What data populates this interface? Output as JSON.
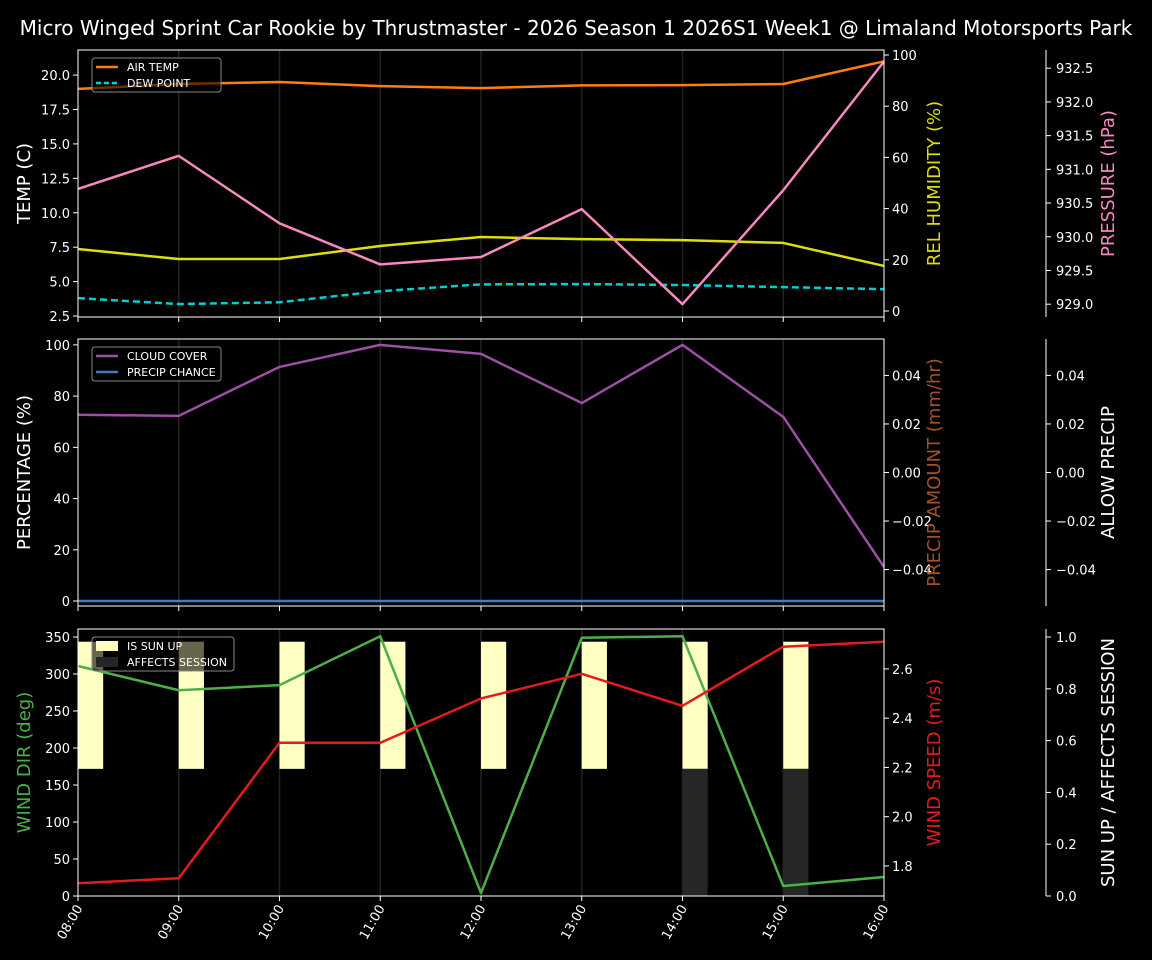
{
  "title": "Micro Winged Sprint Car Rookie by Thrustmaster - 2026 Season 1 2026S1 Week1 @ Limaland Motorsports Park",
  "colors": {
    "air_temp": "#ff7f0e",
    "dew_point": "#00ced1",
    "humidity": "#dddd10",
    "pressure": "#f788c0",
    "cloud_cover": "#9c4fa4",
    "precip_chance": "#3a7fc0",
    "precip_amount": "#a0522d",
    "allow_precip": "#ffffff",
    "wind_dir": "#4daf4a",
    "wind_speed": "#e41a1c",
    "sun_up": "#ffffc4",
    "affects_session": "#262626"
  },
  "chart_data": [
    {
      "type": "line",
      "x": [
        "08:00",
        "09:00",
        "10:00",
        "11:00",
        "12:00",
        "13:00",
        "14:00",
        "15:00",
        "16:00"
      ],
      "ylabel": "TEMP (C)",
      "ylim": [
        2.43,
        21.82
      ],
      "yticks": [
        "2.5",
        "5.0",
        "7.5",
        "10.0",
        "12.5",
        "15.0",
        "17.5",
        "20.0"
      ],
      "series": [
        {
          "name": "AIR TEMP",
          "axis": "left",
          "values": [
            19.0,
            19.35,
            19.5,
            19.2,
            19.05,
            19.25,
            19.27,
            19.35,
            21.0
          ]
        },
        {
          "name": "DEW POINT",
          "axis": "left",
          "style": "dashed",
          "values": [
            3.8,
            3.37,
            3.5,
            4.3,
            4.8,
            4.82,
            4.75,
            4.6,
            4.45
          ]
        },
        {
          "axis": "humidity",
          "values": [
            24.2,
            20.3,
            20.3,
            25.4,
            28.9,
            28.1,
            27.7,
            26.6,
            17.6
          ]
        },
        {
          "axis": "pressure",
          "values": [
            930.71,
            931.2,
            930.2,
            929.59,
            929.7,
            930.41,
            929.0,
            930.69,
            932.6
          ]
        }
      ],
      "y2label": "REL HUMIDITY (%)",
      "y2lim": [
        -2.34,
        101.95
      ],
      "y2ticks": [
        "0",
        "20",
        "40",
        "60",
        "80",
        "100"
      ],
      "y3label": "PRESSURE (hPa)",
      "y3lim": [
        928.81,
        932.77
      ],
      "y3ticks": [
        "929.0",
        "929.5",
        "930.0",
        "930.5",
        "931.0",
        "931.5",
        "932.0",
        "932.5"
      ],
      "legend": "top-left",
      "grid": "vertical"
    },
    {
      "type": "line",
      "x": [
        "08:00",
        "09:00",
        "10:00",
        "11:00",
        "12:00",
        "13:00",
        "14:00",
        "15:00",
        "16:00"
      ],
      "ylabel": "PERCENTAGE (%)",
      "ylim": [
        -1.95,
        102.3
      ],
      "yticks": [
        "0",
        "20",
        "40",
        "60",
        "80",
        "100"
      ],
      "series": [
        {
          "name": "CLOUD COVER",
          "axis": "left",
          "values": [
            72.7,
            72.3,
            91.4,
            100,
            96.5,
            77.3,
            100,
            71.9,
            13.3
          ]
        },
        {
          "name": "PRECIP CHANCE",
          "axis": "left",
          "values": [
            0,
            0,
            0,
            0,
            0,
            0,
            0,
            0,
            0
          ]
        }
      ],
      "y2label": "PRECIP AMOUNT (mm/hr)",
      "y2lim": [
        -0.055,
        0.055
      ],
      "y2ticks": [
        "−0.04",
        "−0.02",
        "0.00",
        "0.02",
        "0.04"
      ],
      "y3label": "ALLOW PRECIP",
      "y3lim": [
        -0.055,
        0.055
      ],
      "y3ticks": [
        "−0.04",
        "−0.02",
        "0.00",
        "0.02",
        "0.04"
      ],
      "legend": "top-left",
      "grid": "vertical"
    },
    {
      "type": "line",
      "x": [
        "08:00",
        "09:00",
        "10:00",
        "11:00",
        "12:00",
        "13:00",
        "14:00",
        "15:00",
        "16:00"
      ],
      "ylabel": "WIND DIR (deg)",
      "ylim": [
        0,
        360.8
      ],
      "yticks": [
        "0",
        "50",
        "100",
        "150",
        "200",
        "250",
        "300",
        "350"
      ],
      "series": [
        {
          "axis": "left",
          "values": [
            310.8,
            278,
            285,
            351,
            4,
            349,
            351,
            13.5,
            25.7
          ]
        },
        {
          "axis": "wind_speed",
          "values": [
            1.73,
            1.75,
            2.3,
            2.3,
            2.48,
            2.58,
            2.45,
            2.69,
            2.71
          ]
        }
      ],
      "bars": [
        {
          "name": "IS SUN UP",
          "values": [
            1,
            1,
            1,
            1,
            1,
            1,
            1,
            1
          ]
        },
        {
          "name": "AFFECTS SESSION",
          "values": [
            0,
            0,
            0,
            0,
            0,
            0,
            1,
            1
          ]
        }
      ],
      "y2label": "WIND SPEED (m/s)",
      "y2lim": [
        1.678,
        2.762
      ],
      "y2ticks": [
        "1.8",
        "2.0",
        "2.2",
        "2.4",
        "2.6"
      ],
      "y3label": "SUN UP / AFFECTS SESSION",
      "y3lim": [
        0,
        1.031
      ],
      "y3ticks": [
        "0.0",
        "0.2",
        "0.4",
        "0.6",
        "0.8",
        "1.0"
      ],
      "legend": "top-left",
      "grid": "vertical"
    }
  ]
}
